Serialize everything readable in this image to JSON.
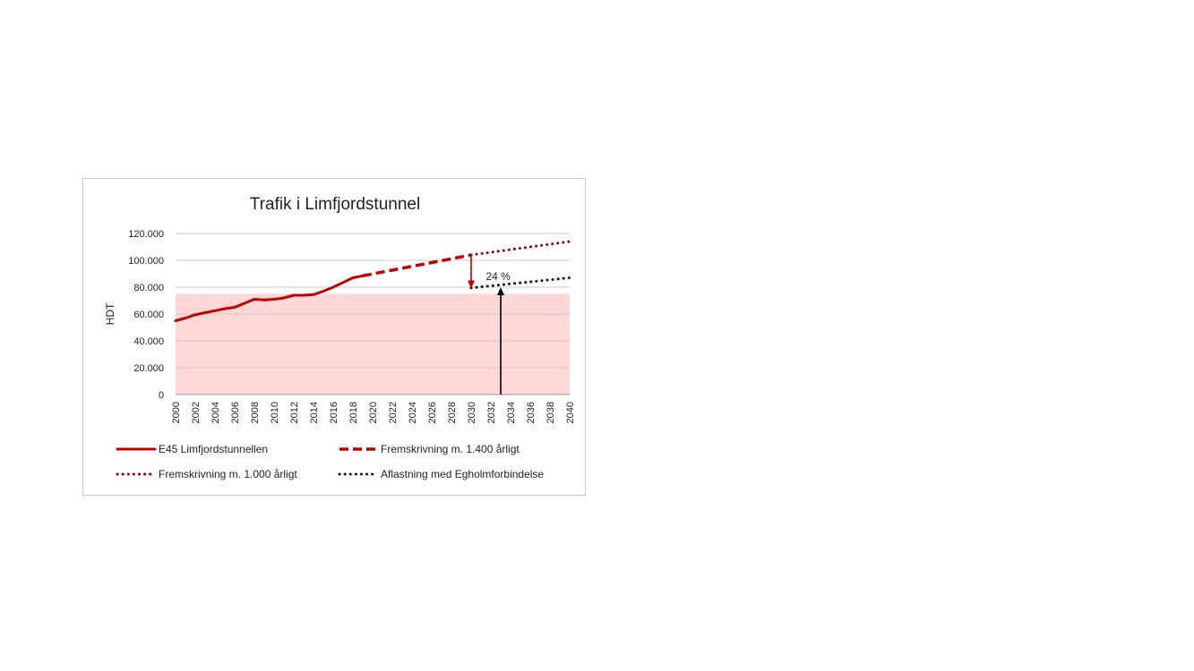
{
  "chart_data": {
    "type": "line",
    "title": "Trafik i Limfjordstunnel",
    "ylabel": "HDT",
    "xlabel": "",
    "xlim": [
      2000,
      2040
    ],
    "ylim": [
      0,
      120000
    ],
    "y_ticks": [
      0,
      20000,
      40000,
      60000,
      80000,
      100000,
      120000
    ],
    "y_tick_labels": [
      "0",
      "20.000",
      "40.000",
      "60.000",
      "80.000",
      "100.000",
      "120.000"
    ],
    "x_ticks": [
      2000,
      2002,
      2004,
      2006,
      2008,
      2010,
      2012,
      2014,
      2016,
      2018,
      2020,
      2022,
      2024,
      2026,
      2028,
      2030,
      2032,
      2034,
      2036,
      2038,
      2040
    ],
    "x_tick_labels": [
      "2000",
      "2002",
      "2004",
      "2006",
      "2008",
      "2010",
      "2012",
      "2014",
      "2016",
      "2018",
      "2020",
      "2022",
      "2024",
      "2026",
      "2028",
      "2030",
      "2032",
      "2034",
      "2036",
      "2038",
      "2040"
    ],
    "grid": true,
    "legend_position": "bottom",
    "capacity_band": {
      "from": 0,
      "to": 75000,
      "color": "#ffd7d7"
    },
    "series": [
      {
        "name": "E45 Limfjordstunnellen",
        "style": "solid",
        "color": "#c00000",
        "x": [
          2000,
          2001,
          2002,
          2003,
          2004,
          2005,
          2006,
          2007,
          2008,
          2009,
          2010,
          2011,
          2012,
          2013,
          2014,
          2015,
          2016,
          2017,
          2018,
          2019
        ],
        "y": [
          55000,
          57000,
          59500,
          61000,
          62500,
          64000,
          65000,
          68000,
          71000,
          70500,
          71000,
          72000,
          74000,
          74000,
          74500,
          77000,
          80000,
          83500,
          87000,
          88500
        ]
      },
      {
        "name": "Fremskrivning m. 1.400 årligt",
        "style": "dashed",
        "color": "#c00000",
        "x": [
          2019,
          2030
        ],
        "y": [
          88500,
          104000
        ]
      },
      {
        "name": "Fremskrivning m. 1.000 årligt",
        "style": "dotted",
        "color": "#8b0000",
        "x": [
          2030,
          2040
        ],
        "y": [
          104000,
          114000
        ]
      },
      {
        "name": "Aflastning med Egholmforbindelse",
        "style": "dotted",
        "color": "#3a0a0a",
        "x": [
          2030,
          2040
        ],
        "y": [
          79500,
          87000
        ]
      }
    ],
    "annotations": [
      {
        "type": "arrow",
        "x": 2030,
        "y_from": 103000,
        "y_to": 79000,
        "color": "#c00000"
      },
      {
        "type": "arrow",
        "x": 2033,
        "y_from": 0,
        "y_to": 80000,
        "color": "#000000"
      },
      {
        "type": "label",
        "text": "24 %",
        "x": 2031.5,
        "y": 88000
      }
    ]
  }
}
